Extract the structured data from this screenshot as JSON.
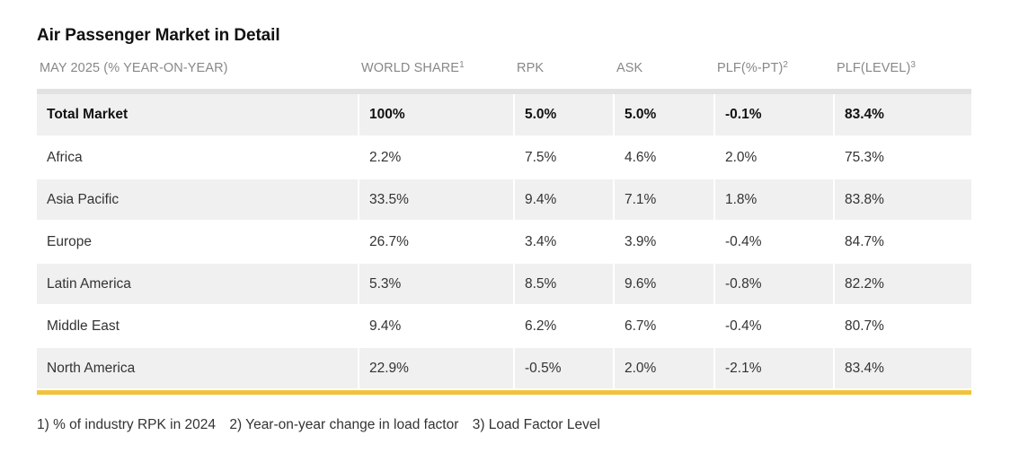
{
  "title": "Air Passenger Market in Detail",
  "header": {
    "c0": "MAY 2025 (% YEAR-ON-YEAR)",
    "c1": "WORLD SHARE",
    "c1_sup": "1",
    "c2": "RPK",
    "c3": "ASK",
    "c4": "PLF(%-PT)",
    "c4_sup": "2",
    "c5": "PLF(LEVEL)",
    "c5_sup": "3"
  },
  "rows": [
    [
      "Total Market",
      "100%",
      "5.0%",
      "5.0%",
      "-0.1%",
      "83.4%"
    ],
    [
      "Africa",
      "2.2%",
      "7.5%",
      "4.6%",
      "2.0%",
      "75.3%"
    ],
    [
      "Asia Pacific",
      "33.5%",
      "9.4%",
      "7.1%",
      "1.8%",
      "83.8%"
    ],
    [
      "Europe",
      "26.7%",
      "3.4%",
      "3.9%",
      "-0.4%",
      "84.7%"
    ],
    [
      "Latin America",
      "5.3%",
      "8.5%",
      "9.6%",
      "-0.8%",
      "82.2%"
    ],
    [
      "Middle East",
      "9.4%",
      "6.2%",
      "6.7%",
      "-0.4%",
      "80.7%"
    ],
    [
      "North America",
      "22.9%",
      "-0.5%",
      "2.0%",
      "-2.1%",
      "83.4%"
    ]
  ],
  "footnotes": [
    "1) % of industry RPK in 2024",
    "2) Year-on-year change in load factor",
    "3) Load Factor Level"
  ],
  "colors": {
    "accent_bar": "#f2c23a",
    "row_stripe": "#f0f0f0",
    "header_text": "#888888"
  }
}
